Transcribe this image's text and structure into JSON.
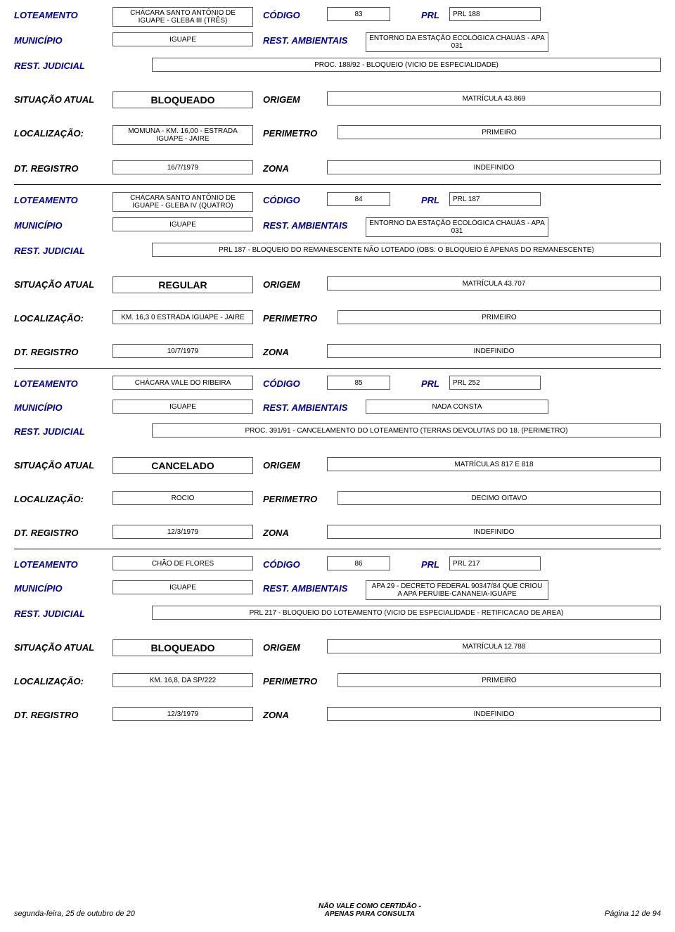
{
  "labels": {
    "loteamento": "LOTEAMENTO",
    "municipio": "MUNICÍPIO",
    "rest_judicial": "REST. JUDICIAL",
    "situacao": "SITUAÇÃO ATUAL",
    "localizacao": "LOCALIZAÇÃO:",
    "dt_registro": "DT. REGISTRO",
    "codigo": "CÓDIGO",
    "prl": "PRL",
    "rest_amb": "REST. AMBIENTAIS",
    "origem": "ORIGEM",
    "perimetro": "PERIMETRO",
    "zona": "ZONA"
  },
  "records": [
    {
      "loteamento": "CHÁCARA SANTO ANTÔNIO DE IGUAPE - GLEBA III (TRÊS)",
      "codigo": "83",
      "prl": "PRL 188",
      "municipio": "IGUAPE",
      "rest_amb": "ENTORNO DA ESTAÇÃO ECOLÓGICA CHAUÁS - APA 031",
      "judicial": "PROC. 188/92 - BLOQUEIO (VICIO DE ESPECIALIDADE)",
      "status": "BLOQUEADO",
      "origem": "MATRÍCULA 43.869",
      "localizacao": "MOMUNA - KM. 16,00 - ESTRADA IGUAPE - JAIRE",
      "perimetro": "PRIMEIRO",
      "dt_registro": "16/7/1979",
      "zona": "INDEFINIDO"
    },
    {
      "loteamento": "CHÁCARA SANTO ANTÔNIO DE IGUAPE - GLEBA IV (QUATRO)",
      "codigo": "84",
      "prl": "PRL 187",
      "municipio": "IGUAPE",
      "rest_amb": "ENTORNO DA ESTAÇÃO ECOLÓGICA CHAUÁS - APA 031",
      "judicial": "PRL 187 - BLOQUEIO DO REMANESCENTE NÃO LOTEADO (OBS: O BLOQUEIO É APENAS DO REMANESCENTE)",
      "status": "REGULAR",
      "origem": "MATRÍCULA 43.707",
      "localizacao": "KM. 16,3 0 ESTRADA IGUAPE - JAIRE",
      "perimetro": "PRIMEIRO",
      "dt_registro": "10/7/1979",
      "zona": "INDEFINIDO"
    },
    {
      "loteamento": "CHÁCARA VALE DO RIBEIRA",
      "codigo": "85",
      "prl": "PRL 252",
      "municipio": "IGUAPE",
      "rest_amb": "NADA CONSTA",
      "judicial": "PROC. 391/91 - CANCELAMENTO DO LOTEAMENTO (TERRAS DEVOLUTAS DO 18. (PERIMETRO)",
      "status": "CANCELADO",
      "origem": "MATRÍCULAS 817 E 818",
      "localizacao": "ROCIO",
      "perimetro": "DECIMO OITAVO",
      "dt_registro": "12/3/1979",
      "zona": "INDEFINIDO"
    },
    {
      "loteamento": "CHÃO DE FLORES",
      "codigo": "86",
      "prl": "PRL 217",
      "municipio": "IGUAPE",
      "rest_amb": "APA 29 - DECRETO FEDERAL 90347/84 QUE CRIOU A APA PERUIBE-CANANEIA-IGUAPE",
      "judicial": "PRL 217 - BLOQUEIO DO LOTEAMENTO (VICIO DE ESPECIALIDADE - RETIFICACAO DE AREA)",
      "status": "BLOQUEADO",
      "origem": "MATRÍCULA 12.788",
      "localizacao": "KM. 16,8, DA SP/222",
      "perimetro": "PRIMEIRO",
      "dt_registro": "12/3/1979",
      "zona": "INDEFINIDO"
    }
  ],
  "footer": {
    "left": "segunda-feira, 25 de outubro de 20",
    "mid_line1": "NÃO VALE COMO CERTIDÃO -",
    "mid_line2": "APENAS PARA CONSULTA",
    "right": "Página 12 de 94"
  },
  "colors": {
    "label": "#000099",
    "border": "#555555",
    "bg": "#ffffff"
  }
}
